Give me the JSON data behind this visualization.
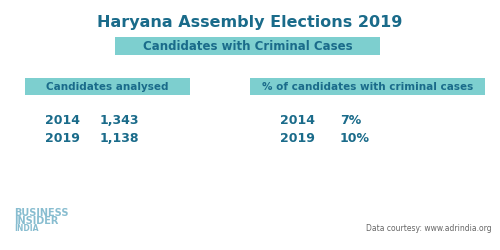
{
  "title": "Haryana Assembly Elections 2019",
  "bg_color": "#ffffff",
  "teal_bg": "#7dcfcf",
  "dark_teal": "#1a6b8a",
  "subtitle_label": "Candidates with Criminal Cases",
  "left_box_label": "Candidates analysed",
  "right_box_label": "% of candidates with criminal cases",
  "left_data": [
    [
      "2014",
      "1,343"
    ],
    [
      "2019",
      "1,138"
    ]
  ],
  "right_data": [
    [
      "2014",
      "7%"
    ],
    [
      "2019",
      "10%"
    ]
  ],
  "footer_lines": [
    "BUSINESS",
    "INSIDER",
    "INDIA"
  ],
  "footer_right": "Data courtesy: www.adrindia.org"
}
